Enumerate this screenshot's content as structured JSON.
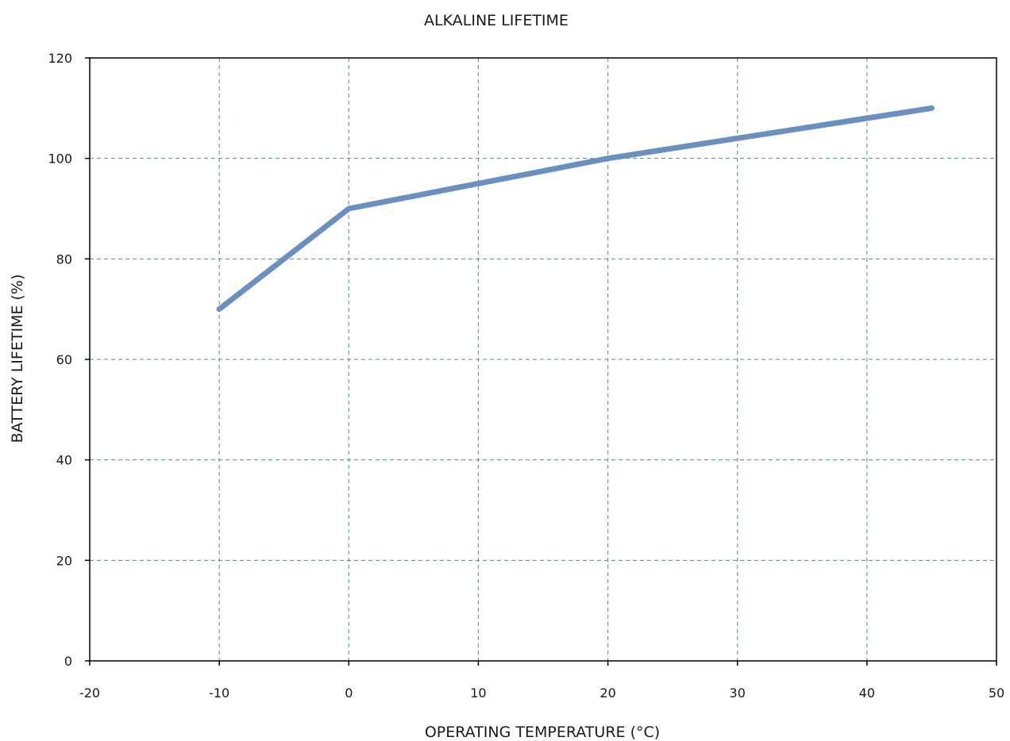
{
  "chart_data": {
    "type": "line",
    "title": "ALKALINE LIFETIME",
    "xlabel": "OPERATING TEMPERATURE (°C)",
    "ylabel": "BATTERY LIFETIME (%)",
    "xlim": [
      -20,
      50
    ],
    "ylim": [
      0,
      120
    ],
    "xticks": [
      -20,
      -10,
      0,
      10,
      20,
      30,
      40,
      50
    ],
    "yticks": [
      0,
      20,
      40,
      60,
      80,
      100,
      120
    ],
    "grid": true,
    "grid_style": "dashed",
    "legend": "none",
    "series": [
      {
        "color": "#6a8fc0",
        "x": [
          -10,
          0,
          10,
          20,
          30,
          40,
          45
        ],
        "y": [
          70,
          90,
          95,
          100,
          104,
          108,
          110
        ]
      }
    ]
  },
  "colors": {
    "line": "#6a8fc0",
    "grid": "#5a8a8a",
    "axis": "#000000"
  }
}
